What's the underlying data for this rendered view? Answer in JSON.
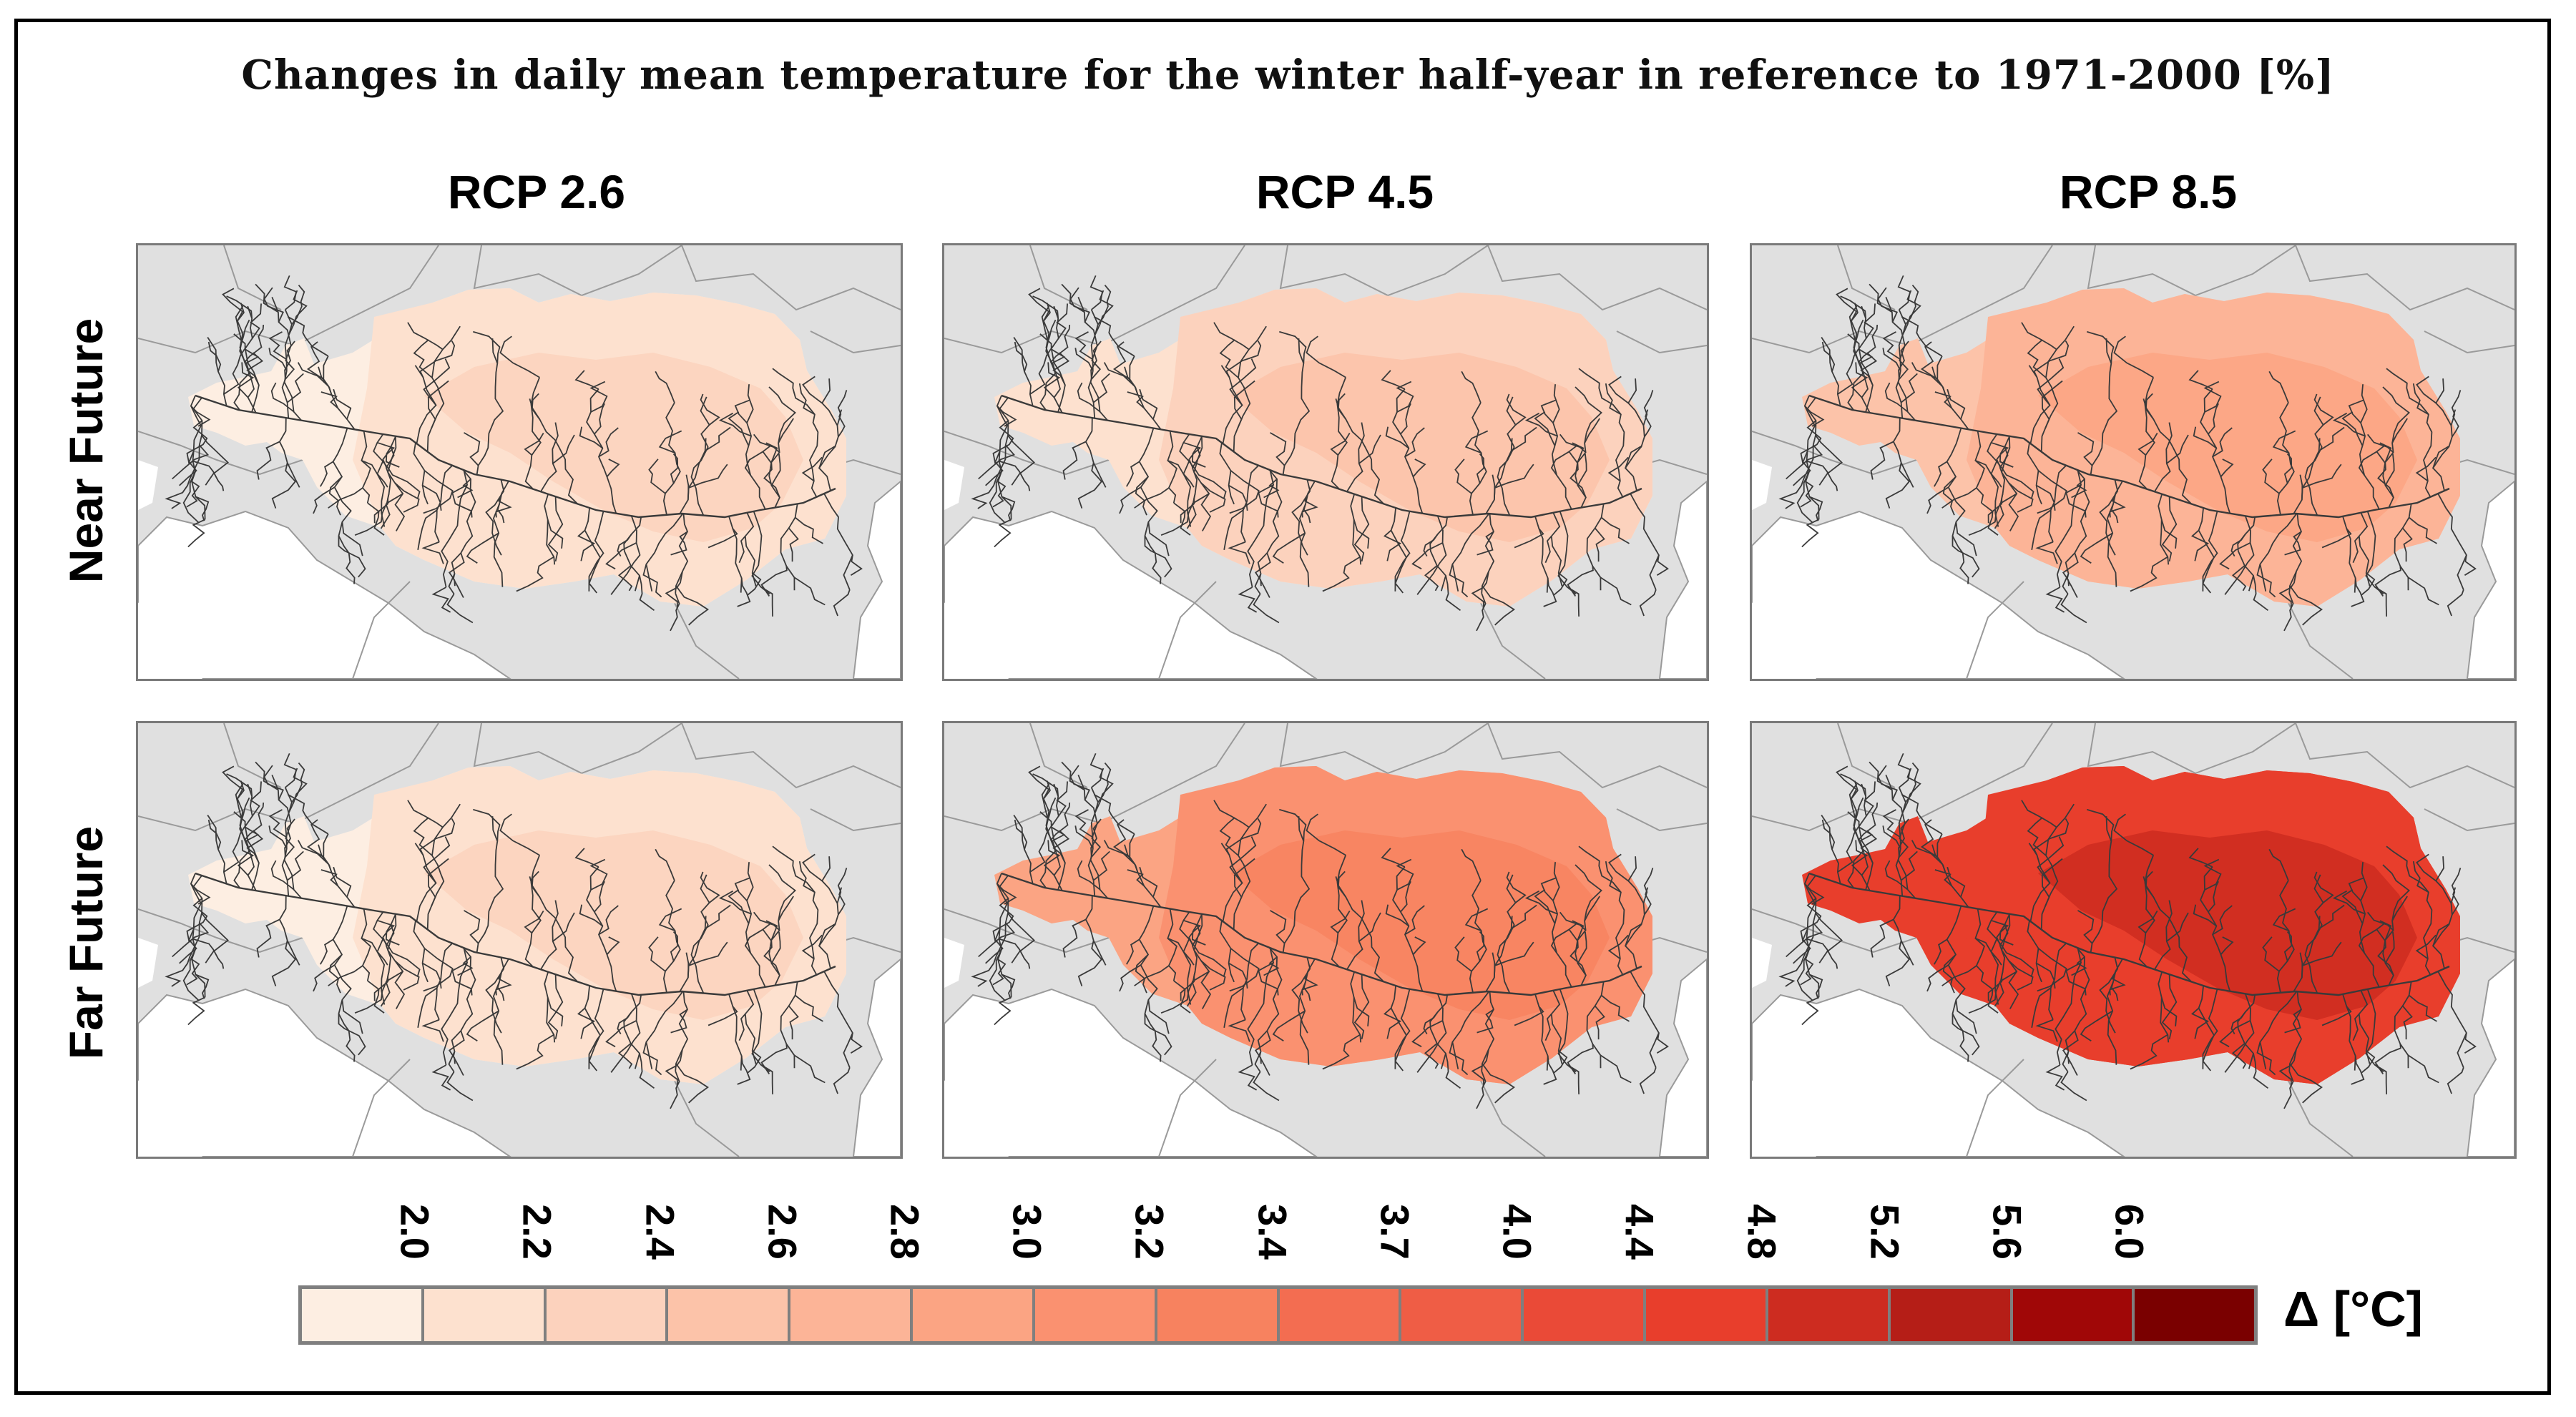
{
  "title": "Changes in daily mean temperature for the winter half-year in reference to 1971-2000 [%]",
  "columns": [
    "RCP 2.6",
    "RCP 4.5",
    "RCP 8.5"
  ],
  "rows": [
    "Near Future",
    "Far Future"
  ],
  "legend": {
    "unit": "Δ [°C]",
    "ticks": [
      "2.0",
      "2.2",
      "2.4",
      "2.6",
      "2.8",
      "3.0",
      "3.2",
      "3.4",
      "3.7",
      "4.0",
      "4.4",
      "4.8",
      "5.2",
      "5.6",
      "6.0"
    ],
    "colors": [
      "#fdeee2",
      "#fde1cf",
      "#fcd2bd",
      "#fcc3a9",
      "#fcb497",
      "#fba483",
      "#fa9170",
      "#f7825f",
      "#f36d51",
      "#ef5d45",
      "#ea4a37",
      "#e83e2c",
      "#cd2c20",
      "#b51e17",
      "#a00707",
      "#7a0000"
    ]
  },
  "colors": {
    "land": "#e0e0e0",
    "sea": "#ffffff",
    "border": "#9a9a9a",
    "river": "#3a3a3a"
  },
  "panels": [
    {
      "row": "Near Future",
      "column": "RCP 2.6",
      "west": "#fdeee2",
      "east": "#fde1cf",
      "core": "#fcd2bd"
    },
    {
      "row": "Near Future",
      "column": "RCP 4.5",
      "west": "#fde1cf",
      "east": "#fcd2bd",
      "core": "#fcc3a9"
    },
    {
      "row": "Near Future",
      "column": "RCP 8.5",
      "west": "#fcc3a9",
      "east": "#fcb497",
      "core": "#fba483"
    },
    {
      "row": "Far Future",
      "column": "RCP 2.6",
      "west": "#fdeee2",
      "east": "#fde1cf",
      "core": "#fcd2bd"
    },
    {
      "row": "Far Future",
      "column": "RCP 4.5",
      "west": "#fba483",
      "east": "#fa9170",
      "core": "#f7825f"
    },
    {
      "row": "Far Future",
      "column": "RCP 8.5",
      "west": "#e83e2c",
      "east": "#e83e2c",
      "core": "#cd2c20"
    }
  ]
}
